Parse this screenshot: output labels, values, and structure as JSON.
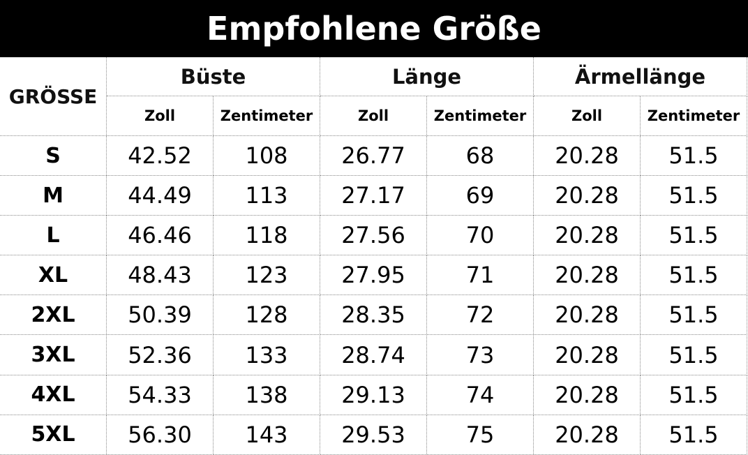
{
  "title": "Empfohlene Größe",
  "table": {
    "corner": "GRÖSSE",
    "groups": [
      "Büste",
      "Länge",
      "Ärmellänge"
    ],
    "units": [
      "Zoll",
      "Zentimeter",
      "Zoll",
      "Zentimeter",
      "Zoll",
      "Zentimeter"
    ],
    "rows": [
      [
        "S",
        "42.52",
        "108",
        "26.77",
        "68",
        "20.28",
        "51.5"
      ],
      [
        "M",
        "44.49",
        "113",
        "27.17",
        "69",
        "20.28",
        "51.5"
      ],
      [
        "L",
        "46.46",
        "118",
        "27.56",
        "70",
        "20.28",
        "51.5"
      ],
      [
        "XL",
        "48.43",
        "123",
        "27.95",
        "71",
        "20.28",
        "51.5"
      ],
      [
        "2XL",
        "50.39",
        "128",
        "28.35",
        "72",
        "20.28",
        "51.5"
      ],
      [
        "3XL",
        "52.36",
        "133",
        "28.74",
        "73",
        "20.28",
        "51.5"
      ],
      [
        "4XL",
        "54.33",
        "138",
        "29.13",
        "74",
        "20.28",
        "51.5"
      ],
      [
        "5XL",
        "56.30",
        "143",
        "29.53",
        "75",
        "20.28",
        "51.5"
      ]
    ]
  }
}
